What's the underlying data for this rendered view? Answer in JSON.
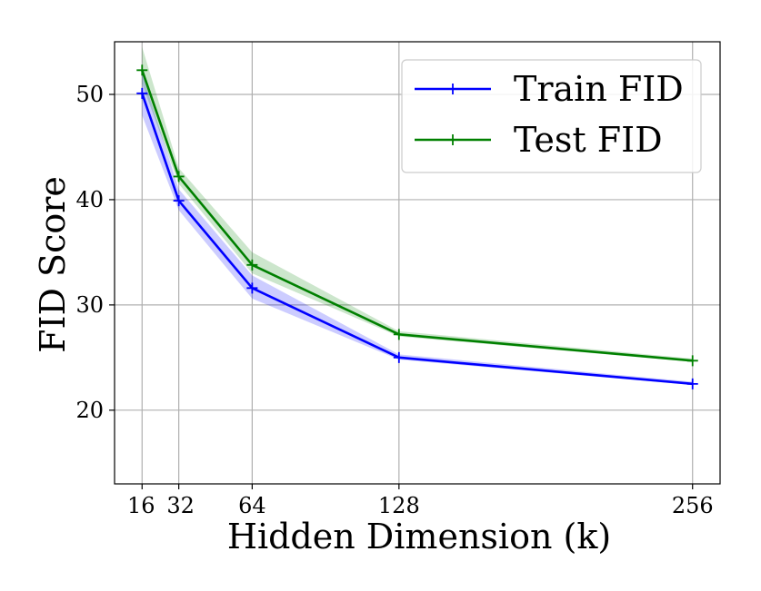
{
  "chart_data": {
    "type": "line",
    "xlabel": "Hidden Dimension (k)",
    "ylabel": "FID Score",
    "x": [
      16,
      32,
      64,
      128,
      256
    ],
    "xtick_labels": [
      "16",
      "32",
      "64",
      "128",
      "256"
    ],
    "yticks": [
      20,
      30,
      40,
      50
    ],
    "ytick_labels": [
      "20",
      "30",
      "40",
      "50"
    ],
    "xlim": [
      4,
      268
    ],
    "ylim": [
      13,
      55
    ],
    "grid": true,
    "legend_position": "top-right",
    "series": [
      {
        "name": "Train FID",
        "color": "#0000ff",
        "values": [
          50.1,
          39.9,
          31.6,
          25.0,
          22.5
        ],
        "lower": [
          48.0,
          39.0,
          30.6,
          24.8,
          22.4
        ],
        "upper": [
          52.0,
          41.0,
          32.8,
          25.3,
          22.7
        ]
      },
      {
        "name": "Test FID",
        "color": "#008000",
        "values": [
          52.3,
          42.2,
          33.8,
          27.2,
          24.7
        ],
        "lower": [
          51.0,
          41.5,
          33.0,
          27.0,
          24.6
        ],
        "upper": [
          54.5,
          43.0,
          35.0,
          27.5,
          24.9
        ]
      }
    ]
  }
}
